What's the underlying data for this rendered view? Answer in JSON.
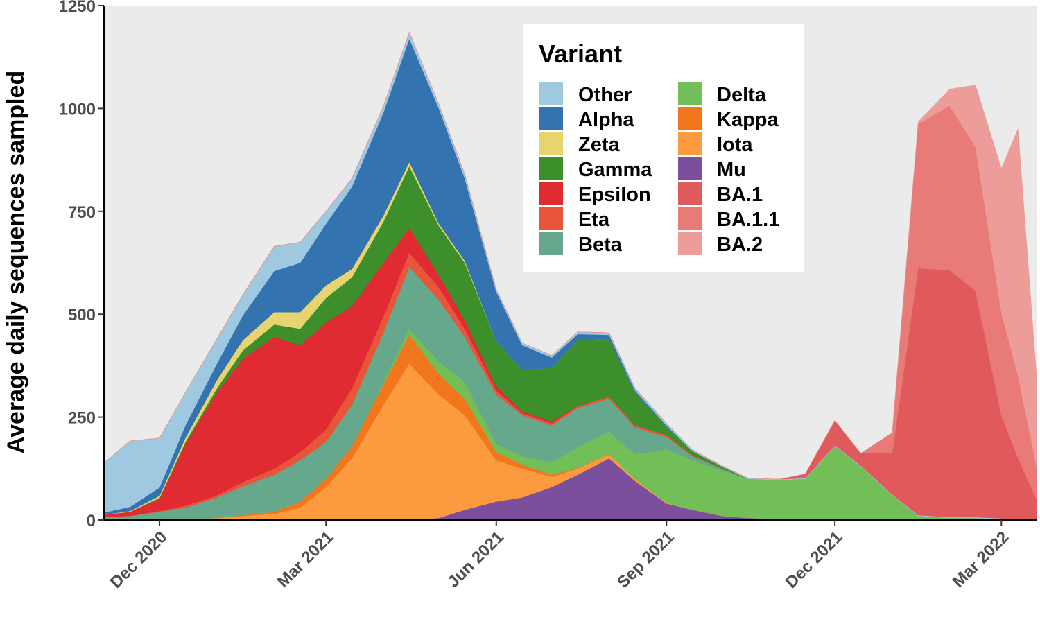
{
  "chart_data": {
    "type": "area",
    "stacked": true,
    "title": "",
    "xlabel": "",
    "ylabel": "Average daily sequences sampled",
    "ylim": [
      0,
      1250
    ],
    "xlim": [
      "2020-11-01",
      "2022-03-20"
    ],
    "y_ticks": [
      0,
      250,
      500,
      750,
      1000,
      1250
    ],
    "x_ticks": [
      {
        "date": "2020-12-01",
        "label": "Dec 2020"
      },
      {
        "date": "2021-03-01",
        "label": "Mar 2021"
      },
      {
        "date": "2021-06-01",
        "label": "Jun 2021"
      },
      {
        "date": "2021-09-01",
        "label": "Sep 2021"
      },
      {
        "date": "2021-12-01",
        "label": "Dec 2021"
      },
      {
        "date": "2022-03-01",
        "label": "Mar 2022"
      }
    ],
    "grid": false,
    "background": "#ebebeb",
    "legend": {
      "title": "Variant",
      "position": "top-center",
      "columns": 2
    },
    "dates": [
      "2020-11-01",
      "2020-11-15",
      "2020-12-01",
      "2020-12-15",
      "2021-01-01",
      "2021-01-15",
      "2021-02-01",
      "2021-02-15",
      "2021-03-01",
      "2021-03-15",
      "2021-04-01",
      "2021-04-15",
      "2021-05-01",
      "2021-05-15",
      "2021-06-01",
      "2021-06-15",
      "2021-07-01",
      "2021-07-15",
      "2021-08-01",
      "2021-08-15",
      "2021-09-01",
      "2021-09-15",
      "2021-10-01",
      "2021-10-15",
      "2021-11-01",
      "2021-11-15",
      "2021-12-01",
      "2021-12-15",
      "2022-01-01",
      "2022-01-15",
      "2022-02-01",
      "2022-02-15",
      "2022-03-01",
      "2022-03-10",
      "2022-03-20"
    ],
    "series": [
      {
        "name": "Mu",
        "color": "#7b4f9e",
        "values": [
          0,
          0,
          0,
          0,
          0,
          0,
          0,
          0,
          0,
          0,
          0,
          0,
          5,
          25,
          45,
          55,
          80,
          110,
          150,
          95,
          40,
          25,
          10,
          5,
          2,
          0,
          0,
          0,
          0,
          0,
          0,
          0,
          0,
          0,
          0
        ]
      },
      {
        "name": "Iota",
        "color": "#fb9a3f",
        "values": [
          0,
          0,
          0,
          0,
          5,
          10,
          15,
          30,
          80,
          150,
          280,
          380,
          300,
          230,
          100,
          70,
          25,
          15,
          10,
          5,
          2,
          0,
          0,
          0,
          0,
          0,
          0,
          0,
          0,
          0,
          0,
          0,
          0,
          0,
          0
        ]
      },
      {
        "name": "Kappa",
        "color": "#f2761c",
        "values": [
          0,
          0,
          0,
          0,
          0,
          2,
          5,
          15,
          20,
          30,
          50,
          70,
          50,
          40,
          20,
          10,
          5,
          2,
          0,
          0,
          0,
          0,
          0,
          0,
          0,
          0,
          0,
          0,
          0,
          0,
          0,
          0,
          0,
          0,
          0
        ]
      },
      {
        "name": "Delta",
        "color": "#72bf58",
        "values": [
          0,
          0,
          0,
          0,
          0,
          0,
          0,
          0,
          0,
          0,
          5,
          15,
          30,
          40,
          20,
          20,
          30,
          50,
          55,
          60,
          130,
          120,
          110,
          95,
          95,
          100,
          180,
          130,
          60,
          10,
          5,
          5,
          2,
          0,
          0
        ]
      },
      {
        "name": "Beta",
        "color": "#66a88b",
        "values": [
          8,
          10,
          20,
          30,
          50,
          70,
          90,
          100,
          90,
          100,
          120,
          150,
          150,
          110,
          120,
          100,
          90,
          95,
          80,
          65,
          30,
          10,
          5,
          0,
          0,
          0,
          0,
          0,
          0,
          0,
          0,
          0,
          0,
          0,
          0
        ]
      },
      {
        "name": "Eta",
        "color": "#e8553a",
        "values": [
          0,
          0,
          2,
          5,
          5,
          10,
          15,
          20,
          30,
          40,
          40,
          35,
          30,
          20,
          10,
          5,
          5,
          5,
          5,
          5,
          5,
          3,
          0,
          0,
          0,
          0,
          0,
          0,
          0,
          0,
          0,
          0,
          0,
          0,
          0
        ]
      },
      {
        "name": "Epsilon",
        "color": "#e02b33",
        "values": [
          5,
          10,
          30,
          150,
          250,
          300,
          320,
          260,
          260,
          200,
          130,
          60,
          30,
          20,
          10,
          5,
          5,
          0,
          0,
          0,
          0,
          0,
          0,
          0,
          0,
          0,
          0,
          0,
          0,
          0,
          0,
          0,
          0,
          0,
          0
        ]
      },
      {
        "name": "Gamma",
        "color": "#3d8f2b",
        "values": [
          0,
          0,
          2,
          5,
          10,
          20,
          30,
          40,
          60,
          70,
          100,
          150,
          120,
          140,
          110,
          100,
          130,
          160,
          140,
          80,
          20,
          10,
          5,
          0,
          0,
          0,
          0,
          0,
          0,
          0,
          0,
          0,
          0,
          0,
          0
        ]
      },
      {
        "name": "Zeta",
        "color": "#e8d46e",
        "values": [
          0,
          2,
          5,
          10,
          20,
          25,
          30,
          40,
          30,
          20,
          15,
          10,
          5,
          5,
          0,
          0,
          0,
          0,
          0,
          0,
          0,
          0,
          0,
          0,
          0,
          0,
          0,
          0,
          0,
          0,
          0,
          0,
          0,
          0,
          0
        ]
      },
      {
        "name": "Alpha",
        "color": "#3373b0",
        "values": [
          5,
          10,
          20,
          30,
          40,
          60,
          100,
          120,
          150,
          200,
          250,
          300,
          280,
          200,
          120,
          60,
          25,
          15,
          10,
          5,
          3,
          0,
          0,
          0,
          0,
          0,
          0,
          0,
          0,
          0,
          0,
          0,
          0,
          0,
          0
        ]
      },
      {
        "name": "Other",
        "color": "#9ec9e0",
        "values": [
          120,
          160,
          120,
          80,
          60,
          50,
          60,
          50,
          30,
          20,
          15,
          15,
          10,
          10,
          5,
          5,
          5,
          5,
          5,
          5,
          5,
          3,
          2,
          2,
          2,
          2,
          2,
          2,
          2,
          2,
          2,
          2,
          2,
          1,
          0
        ]
      },
      {
        "name": "BA.1",
        "color": "#e0595b",
        "values": [
          0,
          0,
          0,
          0,
          0,
          0,
          0,
          0,
          0,
          0,
          0,
          0,
          0,
          0,
          0,
          0,
          0,
          0,
          0,
          0,
          0,
          0,
          0,
          0,
          0,
          10,
          60,
          30,
          100,
          600,
          600,
          550,
          250,
          150,
          50
        ]
      },
      {
        "name": "BA.1.1",
        "color": "#e87a78",
        "values": [
          0,
          0,
          0,
          0,
          0,
          0,
          0,
          0,
          0,
          0,
          0,
          0,
          0,
          0,
          0,
          0,
          0,
          0,
          0,
          0,
          0,
          0,
          0,
          0,
          0,
          0,
          0,
          0,
          50,
          350,
          400,
          350,
          250,
          200,
          80
        ]
      },
      {
        "name": "BA.2",
        "color": "#ec9d99",
        "values": [
          0,
          0,
          0,
          0,
          0,
          0,
          0,
          0,
          0,
          0,
          0,
          0,
          0,
          0,
          0,
          0,
          0,
          0,
          0,
          0,
          0,
          0,
          0,
          0,
          0,
          0,
          0,
          0,
          0,
          5,
          40,
          150,
          350,
          600,
          220
        ]
      }
    ]
  },
  "legend_items": [
    {
      "label": "Other",
      "color": "#9ec9e0"
    },
    {
      "label": "Alpha",
      "color": "#3373b0"
    },
    {
      "label": "Zeta",
      "color": "#e8d46e"
    },
    {
      "label": "Gamma",
      "color": "#3d8f2b"
    },
    {
      "label": "Epsilon",
      "color": "#e02b33"
    },
    {
      "label": "Eta",
      "color": "#e8553a"
    },
    {
      "label": "Beta",
      "color": "#66a88b"
    },
    {
      "label": "Delta",
      "color": "#72bf58"
    },
    {
      "label": "Kappa",
      "color": "#f2761c"
    },
    {
      "label": "Iota",
      "color": "#fb9a3f"
    },
    {
      "label": "Mu",
      "color": "#7b4f9e"
    },
    {
      "label": "BA.1",
      "color": "#e0595b"
    },
    {
      "label": "BA.1.1",
      "color": "#e87a78"
    },
    {
      "label": "BA.2",
      "color": "#ec9d99"
    }
  ]
}
